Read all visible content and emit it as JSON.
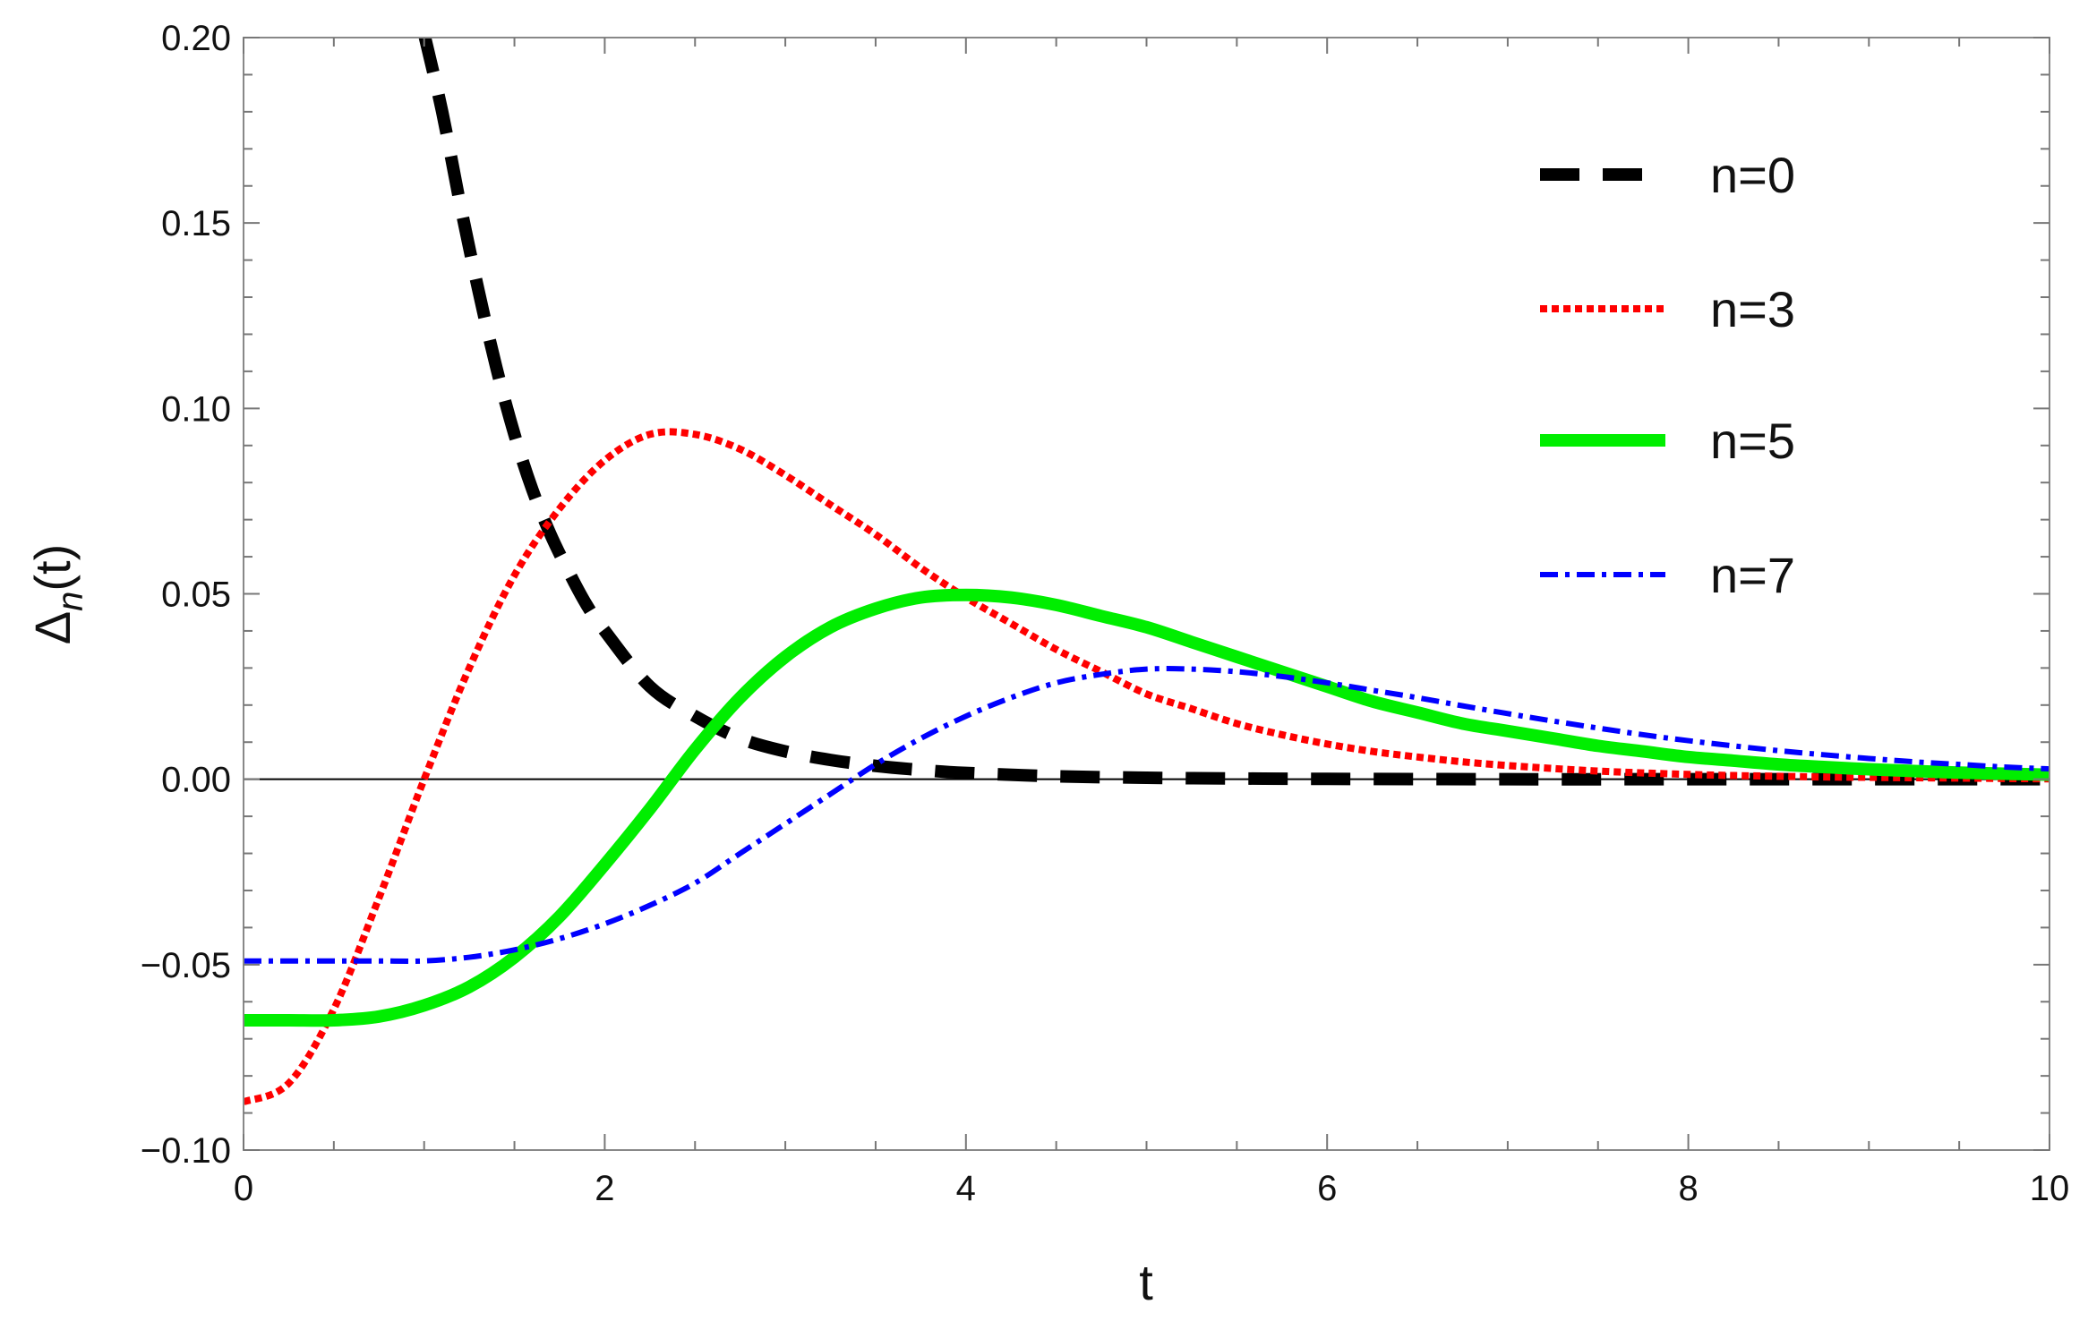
{
  "chart_data": {
    "type": "line",
    "title": "",
    "xlabel": "t",
    "ylabel_main": "Δ",
    "ylabel_sub": "n",
    "ylabel_tail": "(t)",
    "xlim": [
      0,
      10
    ],
    "ylim": [
      -0.1,
      0.2
    ],
    "x_ticks": [
      0,
      2,
      4,
      6,
      8,
      10
    ],
    "x_tick_labels": [
      "0",
      "2",
      "4",
      "6",
      "8",
      "10"
    ],
    "y_ticks": [
      -0.1,
      -0.05,
      0.0,
      0.05,
      0.1,
      0.15,
      0.2
    ],
    "y_tick_labels": [
      "−0.10",
      "−0.05",
      "0.00",
      "0.05",
      "0.10",
      "0.15",
      "0.20"
    ],
    "grid": false,
    "legend_position": "top-right",
    "x": [
      0,
      0.25,
      0.5,
      0.75,
      1.0,
      1.25,
      1.5,
      1.75,
      2.0,
      2.25,
      2.5,
      2.75,
      3.0,
      3.25,
      3.5,
      3.75,
      4.0,
      4.25,
      4.5,
      4.75,
      5.0,
      5.25,
      5.5,
      5.75,
      6.0,
      6.25,
      6.5,
      6.75,
      7.0,
      7.25,
      7.5,
      7.75,
      8.0,
      8.25,
      8.5,
      8.75,
      9.0,
      9.25,
      9.5,
      9.75,
      10.0
    ],
    "series": [
      {
        "name": "n=0",
        "color": "#000000",
        "style": "dashed",
        "x": [
          1.0,
          1.1,
          1.2,
          1.3,
          1.4,
          1.5,
          1.6,
          1.7,
          1.8,
          1.9,
          2.0,
          2.25,
          2.5,
          2.75,
          3.0,
          3.25,
          3.5,
          3.75,
          4.0,
          4.5,
          5.0,
          5.5,
          6.0,
          7.0,
          8.0,
          9.0,
          10.0
        ],
        "values": [
          0.201,
          0.18,
          0.155,
          0.132,
          0.111,
          0.093,
          0.078,
          0.066,
          0.056,
          0.047,
          0.04,
          0.025,
          0.017,
          0.011,
          0.0075,
          0.0052,
          0.0036,
          0.0025,
          0.0017,
          0.0008,
          0.0004,
          0.0002,
          0.0001,
          0.0,
          0.0,
          0.0,
          0.0
        ]
      },
      {
        "name": "n=3",
        "color": "#ff0000",
        "style": "dotted",
        "values": [
          -0.087,
          -0.082,
          -0.062,
          -0.032,
          0.0,
          0.03,
          0.055,
          0.073,
          0.086,
          0.093,
          0.093,
          0.089,
          0.082,
          0.074,
          0.066,
          0.057,
          0.049,
          0.042,
          0.035,
          0.029,
          0.023,
          0.019,
          0.015,
          0.012,
          0.0095,
          0.0075,
          0.006,
          0.0047,
          0.0037,
          0.0029,
          0.0022,
          0.0017,
          0.0013,
          0.001,
          0.0008,
          0.0006,
          0.0005,
          0.0004,
          0.0003,
          0.0002,
          0.0001
        ]
      },
      {
        "name": "n=5",
        "color": "#00ee00",
        "style": "solid-thick",
        "values": [
          -0.065,
          -0.065,
          -0.065,
          -0.064,
          -0.061,
          -0.056,
          -0.048,
          -0.037,
          -0.023,
          -0.008,
          0.008,
          0.022,
          0.033,
          0.041,
          0.046,
          0.049,
          0.0497,
          0.049,
          0.047,
          0.044,
          0.041,
          0.037,
          0.033,
          0.029,
          0.025,
          0.021,
          0.018,
          0.015,
          0.013,
          0.011,
          0.009,
          0.0075,
          0.006,
          0.005,
          0.004,
          0.0033,
          0.0027,
          0.0022,
          0.0018,
          0.0015,
          0.0012
        ]
      },
      {
        "name": "n=7",
        "color": "#0000ff",
        "style": "dashdot",
        "values": [
          -0.049,
          -0.049,
          -0.049,
          -0.049,
          -0.049,
          -0.048,
          -0.046,
          -0.043,
          -0.039,
          -0.034,
          -0.028,
          -0.02,
          -0.012,
          -0.004,
          0.004,
          0.011,
          0.017,
          0.022,
          0.026,
          0.0283,
          0.0297,
          0.0297,
          0.029,
          0.0277,
          0.026,
          0.024,
          0.022,
          0.0198,
          0.0177,
          0.0157,
          0.0138,
          0.012,
          0.0104,
          0.009,
          0.0077,
          0.0066,
          0.0056,
          0.0047,
          0.004,
          0.0033,
          0.0028
        ]
      }
    ]
  }
}
